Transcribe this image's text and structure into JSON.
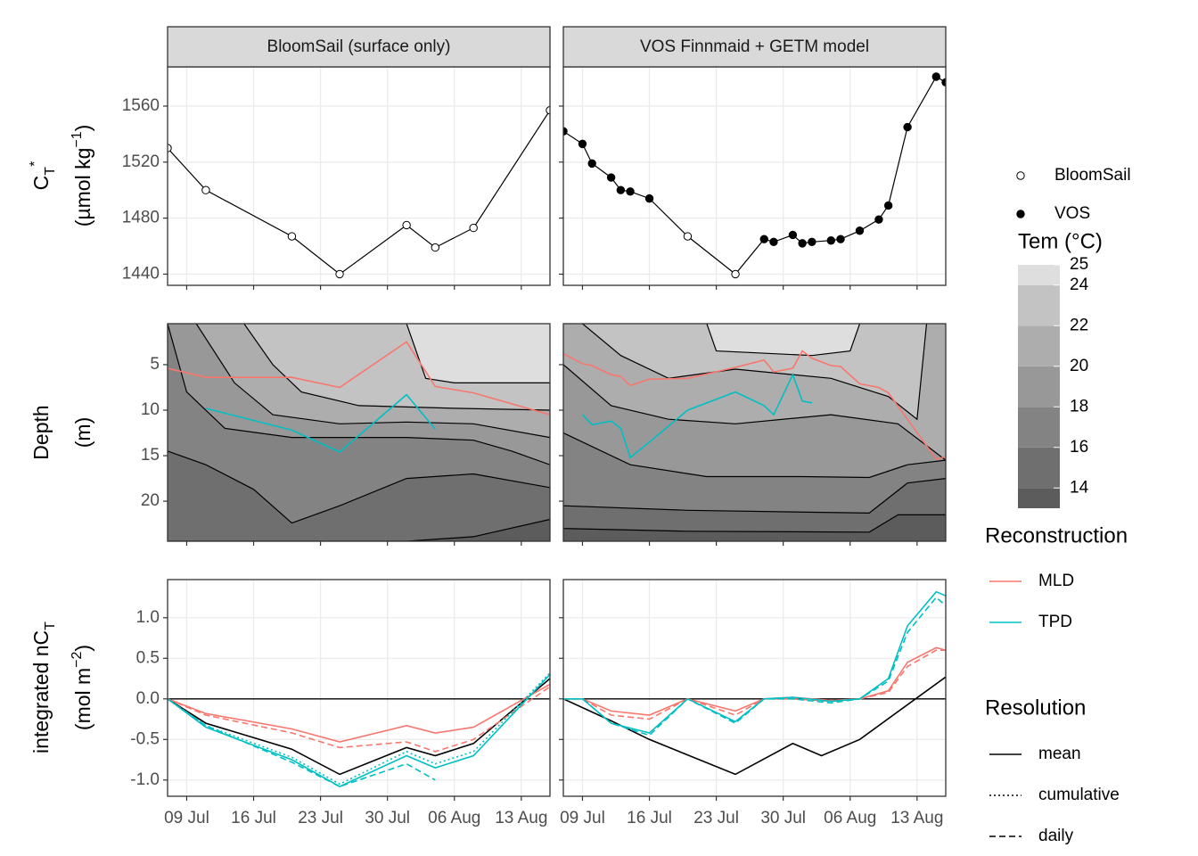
{
  "chart_data": [
    {
      "type": "scatter",
      "title": "BloomSail (surface only)",
      "ylabel": [
        [
          {
            "text": "C"
          },
          {
            "text": "T",
            "shift": "sub"
          },
          {
            "text": "*",
            "shift": "super"
          }
        ],
        [
          {
            "text": "(µmol kg"
          },
          {
            "text": "−1",
            "shift": "super"
          },
          {
            "text": ")"
          }
        ]
      ],
      "x": [
        "07 Jul",
        "11 Jul",
        "20 Jul",
        "25 Jul",
        "01 Aug",
        "04 Aug",
        "08 Aug",
        "16 Aug"
      ],
      "values": [
        1530,
        1500,
        1467,
        1440,
        1475,
        1459,
        1473,
        1557
      ],
      "filled": [
        false,
        false,
        false,
        false,
        false,
        false,
        false,
        false
      ],
      "color": "#000000",
      "grid": true,
      "xlim": [
        "07 Jul",
        "16 Aug"
      ],
      "xticks": [
        "09 Jul",
        "16 Jul",
        "23 Jul",
        "30 Jul",
        "06 Aug",
        "13 Aug"
      ],
      "ylim": [
        1432,
        1588
      ],
      "yticks": [
        1440,
        1480,
        1520,
        1560
      ]
    },
    {
      "type": "scatter",
      "title": "VOS Finnmaid + GETM model",
      "x": [
        "07 Jul",
        "09 Jul",
        "10 Jul",
        "12 Jul",
        "13 Jul",
        "14 Jul",
        "16 Jul",
        "20 Jul",
        "25 Jul",
        "28 Jul",
        "29 Jul",
        "31 Jul",
        "01 Aug",
        "02 Aug",
        "04 Aug",
        "05 Aug",
        "07 Aug",
        "09 Aug",
        "10 Aug",
        "12 Aug",
        "15 Aug",
        "16 Aug"
      ],
      "values": [
        1542,
        1533,
        1519,
        1509,
        1500,
        1499,
        1494,
        1467,
        1440,
        1465,
        1463,
        1468,
        1462,
        1463,
        1464,
        1465,
        1471,
        1479,
        1489,
        1545,
        1581,
        1577
      ],
      "filled": [
        true,
        true,
        true,
        true,
        true,
        true,
        true,
        false,
        false,
        true,
        true,
        true,
        true,
        true,
        true,
        true,
        true,
        true,
        true,
        true,
        true,
        true
      ],
      "color": "#000000",
      "grid": true,
      "xlim": [
        "07 Jul",
        "16 Aug"
      ],
      "xticks": [
        "09 Jul",
        "16 Jul",
        "23 Jul",
        "30 Jul",
        "06 Aug",
        "13 Aug"
      ],
      "ylim": [
        1432,
        1588
      ],
      "yticks": [
        1440,
        1480,
        1520,
        1560
      ]
    },
    {
      "type": "contour",
      "ylabel": [
        [
          {
            "text": "Depth"
          }
        ],
        [
          {
            "text": "(m)"
          }
        ]
      ],
      "isotherms": [
        {
          "level": 14,
          "x": [
            "07 Jul",
            "01 Aug",
            "08 Aug",
            "16 Aug"
          ],
          "values": [
            24.4,
            24.4,
            23.9,
            22.0
          ]
        },
        {
          "level": 16,
          "x": [
            "07 Jul",
            "11 Jul",
            "16 Jul",
            "20 Jul",
            "25 Jul",
            "01 Aug",
            "08 Aug",
            "16 Aug"
          ],
          "values": [
            14.5,
            16,
            18.7,
            22.4,
            20.5,
            17.5,
            17.0,
            18.5
          ]
        },
        {
          "level": 18,
          "x": [
            "07 Jul",
            "09 Jul",
            "13 Jul",
            "20 Jul",
            "01 Aug",
            "08 Aug",
            "12 Aug",
            "16 Aug"
          ],
          "values": [
            0.5,
            8,
            12,
            13,
            13,
            13.3,
            14.5,
            16
          ]
        },
        {
          "level": 20,
          "x": [
            "10 Jul",
            "14 Jul",
            "18 Jul",
            "25 Jul",
            "01 Aug",
            "08 Aug",
            "16 Aug"
          ],
          "values": [
            0.5,
            7,
            10.5,
            11.5,
            11.3,
            11.5,
            13
          ]
        },
        {
          "level": 22,
          "x": [
            "15 Jul",
            "18 Jul",
            "21 Jul",
            "27 Jul",
            "06 Aug",
            "16 Aug"
          ],
          "values": [
            0.5,
            5,
            8,
            9.5,
            9.8,
            10
          ]
        },
        {
          "level": 24,
          "x": [
            "01 Aug",
            "03 Aug",
            "06 Aug",
            "16 Aug"
          ],
          "values": [
            0.5,
            6.5,
            7,
            7
          ]
        }
      ],
      "series": [
        {
          "color": "#F8766D",
          "x": [
            "07 Jul",
            "11 Jul",
            "20 Jul",
            "25 Jul",
            "01 Aug",
            "04 Aug",
            "08 Aug",
            "16 Aug"
          ],
          "values": [
            5.4,
            6.4,
            6.4,
            7.5,
            2.5,
            7.4,
            8.1,
            10.5
          ]
        },
        {
          "color": "#00BFC4",
          "x": [
            "11 Jul",
            "20 Jul",
            "25 Jul",
            "01 Aug",
            "04 Aug"
          ],
          "values": [
            9.8,
            12.2,
            14.6,
            8.3,
            12.1
          ]
        }
      ],
      "xlim": [
        "07 Jul",
        "16 Aug"
      ],
      "xticks": [
        "09 Jul",
        "16 Jul",
        "23 Jul",
        "30 Jul",
        "06 Aug",
        "13 Aug"
      ],
      "ylim": [
        24.4,
        0.5
      ],
      "yticks": [
        5,
        10,
        15,
        20
      ]
    },
    {
      "type": "contour",
      "isotherms": [
        {
          "level": 14,
          "x": [
            "07 Jul",
            "20 Jul",
            "08 Aug",
            "11 Aug",
            "16 Aug"
          ],
          "values": [
            23,
            23.3,
            23.4,
            21.5,
            21.5
          ]
        },
        {
          "level": 16,
          "x": [
            "07 Jul",
            "20 Jul",
            "08 Aug",
            "12 Aug",
            "16 Aug"
          ],
          "values": [
            20.5,
            21,
            21.3,
            18,
            17.5
          ]
        },
        {
          "level": 18,
          "x": [
            "07 Jul",
            "14 Jul",
            "22 Jul",
            "01 Aug",
            "08 Aug",
            "12 Aug",
            "16 Aug"
          ],
          "values": [
            12.5,
            16,
            17.3,
            17.3,
            17.4,
            16,
            15.5
          ]
        },
        {
          "level": 20,
          "x": [
            "07 Jul",
            "12 Jul",
            "18 Jul",
            "25 Jul",
            "04 Aug",
            "11 Aug",
            "16 Aug"
          ],
          "values": [
            5,
            9.5,
            11,
            11.5,
            10.5,
            11.5,
            15.5
          ]
        },
        {
          "level": 22,
          "x": [
            "09 Jul",
            "13 Jul",
            "18 Jul",
            "25 Jul",
            "04 Aug",
            "10 Aug",
            "13 Aug",
            "14 Aug"
          ],
          "values": [
            0.5,
            4,
            6.5,
            5.5,
            6.5,
            8.5,
            11,
            0.5
          ]
        },
        {
          "level": 24,
          "x": [
            "22 Jul",
            "23 Jul",
            "02 Aug",
            "06 Aug",
            "07 Aug"
          ],
          "values": [
            0.5,
            3.5,
            4,
            3.5,
            0.5
          ]
        }
      ],
      "series": [
        {
          "color": "#F8766D",
          "x": [
            "07 Jul",
            "09 Jul",
            "10 Jul",
            "12 Jul",
            "13 Jul",
            "14 Jul",
            "16 Jul",
            "20 Jul",
            "25 Jul",
            "28 Jul",
            "29 Jul",
            "31 Jul",
            "01 Aug",
            "02 Aug",
            "04 Aug",
            "05 Aug",
            "07 Aug",
            "09 Aug",
            "10 Aug",
            "12 Aug",
            "15 Aug",
            "16 Aug"
          ],
          "values": [
            3.8,
            4.9,
            5.1,
            6.1,
            6.3,
            7.3,
            6.6,
            6.5,
            5.3,
            4.5,
            5.8,
            5.4,
            3.5,
            4.3,
            5.1,
            5.2,
            7.1,
            7.5,
            8.1,
            11.0,
            15.4,
            15.1
          ]
        },
        {
          "color": "#00BFC4",
          "x": [
            "09 Jul",
            "10 Jul",
            "12 Jul",
            "13 Jul",
            "14 Jul",
            "16 Jul",
            "20 Jul",
            "25 Jul",
            "28 Jul",
            "29 Jul",
            "31 Jul",
            "01 Aug",
            "02 Aug"
          ],
          "values": [
            10.5,
            11.6,
            11.2,
            12.0,
            15.2,
            13.5,
            10.0,
            8.0,
            9.5,
            10.5,
            6.1,
            9.0,
            9.2
          ]
        }
      ],
      "xlim": [
        "07 Jul",
        "16 Aug"
      ],
      "xticks": [
        "09 Jul",
        "16 Jul",
        "23 Jul",
        "30 Jul",
        "06 Aug",
        "13 Aug"
      ],
      "ylim": [
        24.4,
        0.5
      ],
      "yticks": [
        5,
        10,
        15,
        20
      ]
    },
    {
      "type": "line",
      "ylabel": [
        [
          {
            "text": "integrated nC"
          },
          {
            "text": "T",
            "shift": "sub"
          }
        ],
        [
          {
            "text": "(mol m"
          },
          {
            "text": "−2",
            "shift": "super"
          },
          {
            "text": ")"
          }
        ]
      ],
      "hline": 0,
      "grid": true,
      "series": [
        {
          "color": "#000000",
          "dash": "solid",
          "x": [
            "07 Jul",
            "11 Jul",
            "20 Jul",
            "25 Jul",
            "01 Aug",
            "04 Aug",
            "08 Aug",
            "16 Aug"
          ],
          "values": [
            0,
            -0.3,
            -0.62,
            -0.93,
            -0.6,
            -0.7,
            -0.55,
            0.25
          ]
        },
        {
          "color": "#F8766D",
          "dash": "solid",
          "x": [
            "07 Jul",
            "11 Jul",
            "20 Jul",
            "25 Jul",
            "01 Aug",
            "04 Aug",
            "08 Aug",
            "16 Aug"
          ],
          "values": [
            0,
            -0.18,
            -0.37,
            -0.53,
            -0.33,
            -0.42,
            -0.35,
            0.18
          ]
        },
        {
          "color": "#F8766D",
          "dash": "dashed",
          "x": [
            "07 Jul",
            "11 Jul",
            "20 Jul",
            "25 Jul",
            "01 Aug",
            "04 Aug",
            "08 Aug",
            "16 Aug"
          ],
          "values": [
            0,
            -0.2,
            -0.42,
            -0.6,
            -0.53,
            -0.65,
            -0.5,
            0.15
          ]
        },
        {
          "color": "#00BFC4",
          "dash": "solid",
          "x": [
            "07 Jul",
            "11 Jul",
            "20 Jul",
            "25 Jul",
            "01 Aug",
            "04 Aug",
            "08 Aug",
            "16 Aug"
          ],
          "values": [
            0,
            -0.35,
            -0.75,
            -1.08,
            -0.7,
            -0.85,
            -0.7,
            0.3
          ]
        },
        {
          "color": "#00BFC4",
          "dash": "dotted",
          "x": [
            "07 Jul",
            "11 Jul",
            "20 Jul",
            "25 Jul",
            "01 Aug",
            "04 Aug",
            "08 Aug",
            "16 Aug"
          ],
          "values": [
            0,
            -0.33,
            -0.72,
            -1.05,
            -0.65,
            -0.8,
            -0.65,
            0.32
          ]
        },
        {
          "color": "#00BFC4",
          "dash": "dashed",
          "x": [
            "07 Jul",
            "11 Jul",
            "20 Jul",
            "25 Jul",
            "01 Aug",
            "04 Aug"
          ],
          "values": [
            0,
            -0.33,
            -0.78,
            -1.08,
            -0.8,
            -1.0
          ]
        }
      ],
      "xlim": [
        "07 Jul",
        "16 Aug"
      ],
      "xticks": [
        "09 Jul",
        "16 Jul",
        "23 Jul",
        "30 Jul",
        "06 Aug",
        "13 Aug"
      ],
      "ylim": [
        -1.2,
        1.47
      ],
      "yticks": [
        {
          "value": -1,
          "label": "-1.0"
        },
        -0.5,
        {
          "value": 0,
          "label": "0.0"
        },
        0.5,
        {
          "value": 1,
          "label": "1.0"
        }
      ]
    },
    {
      "type": "line",
      "hline": 0,
      "grid": true,
      "series": [
        {
          "color": "#000000",
          "dash": "solid",
          "x": [
            "07 Jul",
            "12 Jul",
            "16 Jul",
            "25 Jul",
            "31 Jul",
            "03 Aug",
            "07 Aug",
            "16 Aug"
          ],
          "values": [
            0,
            -0.27,
            -0.5,
            -0.93,
            -0.55,
            -0.7,
            -0.5,
            0.27
          ]
        },
        {
          "color": "#F8766D",
          "dash": "solid",
          "x": [
            "07 Jul",
            "09 Jul",
            "12 Jul",
            "16 Jul",
            "20 Jul",
            "25 Jul",
            "28 Jul",
            "31 Jul",
            "04 Aug",
            "07 Aug",
            "10 Aug",
            "12 Aug",
            "15 Aug",
            "16 Aug"
          ],
          "values": [
            0,
            0,
            -0.15,
            -0.2,
            0,
            -0.15,
            0,
            0.02,
            -0.02,
            0,
            0.1,
            0.45,
            0.63,
            0.6
          ]
        },
        {
          "color": "#F8766D",
          "dash": "dashed",
          "x": [
            "07 Jul",
            "09 Jul",
            "12 Jul",
            "16 Jul",
            "20 Jul",
            "25 Jul",
            "28 Jul",
            "31 Jul",
            "04 Aug",
            "07 Aug",
            "10 Aug",
            "12 Aug",
            "15 Aug",
            "16 Aug"
          ],
          "values": [
            0,
            0,
            -0.2,
            -0.25,
            0,
            -0.2,
            0,
            0,
            -0.03,
            0,
            0.08,
            0.4,
            0.6,
            0.6
          ]
        },
        {
          "color": "#00BFC4",
          "dash": "solid",
          "x": [
            "07 Jul",
            "09 Jul",
            "12 Jul",
            "16 Jul",
            "20 Jul",
            "25 Jul",
            "28 Jul",
            "31 Jul",
            "04 Aug",
            "07 Aug",
            "10 Aug",
            "12 Aug",
            "15 Aug",
            "16 Aug"
          ],
          "values": [
            0,
            0,
            -0.3,
            -0.42,
            0,
            -0.28,
            0,
            0.02,
            -0.03,
            0,
            0.25,
            0.9,
            1.32,
            1.27
          ]
        },
        {
          "color": "#00BFC4",
          "dash": "dashed",
          "x": [
            "07 Jul",
            "09 Jul",
            "12 Jul",
            "16 Jul",
            "20 Jul",
            "25 Jul",
            "28 Jul",
            "31 Jul",
            "04 Aug",
            "07 Aug",
            "10 Aug",
            "12 Aug",
            "15 Aug",
            "16 Aug"
          ],
          "values": [
            0,
            0,
            -0.3,
            -0.45,
            0,
            -0.3,
            0,
            0,
            -0.05,
            0,
            0.22,
            0.82,
            1.25,
            1.15
          ]
        }
      ],
      "xlim": [
        "07 Jul",
        "16 Aug"
      ],
      "xticks": [
        "09 Jul",
        "16 Jul",
        "23 Jul",
        "30 Jul",
        "06 Aug",
        "13 Aug"
      ],
      "ylim": [
        -1.2,
        1.47
      ],
      "yticks": [
        {
          "value": -1,
          "label": "-1.0"
        },
        -0.5,
        {
          "value": 0,
          "label": "0.0"
        },
        0.5,
        {
          "value": 1,
          "label": "1.0"
        }
      ]
    }
  ],
  "legends": {
    "points": [
      {
        "name": "BloomSail",
        "filled": false
      },
      {
        "name": "VOS",
        "filled": true
      }
    ],
    "temperature": {
      "title": "Tem (°C)",
      "lim": [
        13,
        25
      ],
      "ticks": [
        14,
        16,
        18,
        20,
        22,
        24,
        25
      ],
      "levels": [
        14,
        16,
        18,
        20,
        22,
        24
      ],
      "colors": [
        "#5c5c5c",
        "#6f6f6f",
        "#838383",
        "#989898",
        "#adadad",
        "#c3c3c3",
        "#dedede"
      ]
    },
    "reconstruction": {
      "title": "Reconstruction",
      "entries": [
        {
          "name": "MLD",
          "color": "#F8766D"
        },
        {
          "name": "TPD",
          "color": "#00BFC4"
        }
      ]
    },
    "resolution": {
      "title": "Resolution",
      "entries": [
        {
          "name": "mean",
          "dash": "solid"
        },
        {
          "name": "cumulative",
          "dash": "dotted"
        },
        {
          "name": "daily",
          "dash": "dashed"
        }
      ]
    }
  }
}
